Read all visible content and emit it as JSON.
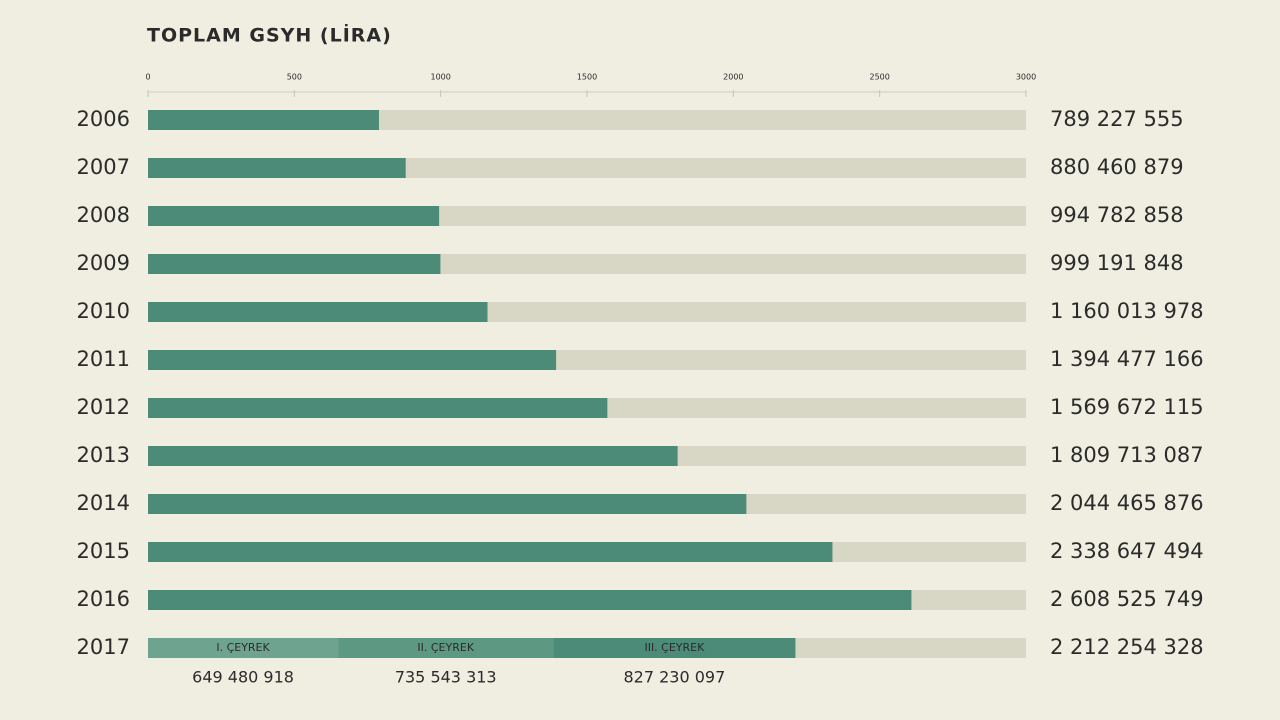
{
  "chart_data": {
    "type": "hbar",
    "title": "TOPLAM GSYH (LİRA)",
    "categories": [
      "2006",
      "2007",
      "2008",
      "2009",
      "2010",
      "2011",
      "2012",
      "2013",
      "2014",
      "2015",
      "2016",
      "2017"
    ],
    "xlim": [
      0,
      3000
    ],
    "xticks": [
      0,
      500,
      1000,
      1500,
      2000,
      2500,
      3000
    ],
    "track_color": "#d8d7c6",
    "series": [
      {
        "color": "#4b8b77",
        "values": [
          789.227555,
          880.460879,
          994.782858,
          999.191848,
          1160.013978,
          1394.477166,
          1569.672115,
          1809.713087,
          2044.465876,
          2338.647494,
          2608.525749,
          null
        ],
        "value_labels": [
          "789 227 555",
          "880 460 879",
          "994 782 858",
          "999 191 848",
          "1 160 013 978",
          "1 394 477 166",
          "1 569 672 115",
          "1 809 713 087",
          "2 044 465 876",
          "2 338 647 494",
          "2 608 525 749",
          null
        ]
      },
      {
        "name": "I. ÇEYREK",
        "color": "#6ea38f",
        "values": [
          null,
          null,
          null,
          null,
          null,
          null,
          null,
          null,
          null,
          null,
          null,
          649.480918
        ],
        "value_labels": [
          null,
          null,
          null,
          null,
          null,
          null,
          null,
          null,
          null,
          null,
          null,
          "649 480 918"
        ]
      },
      {
        "name": "II. ÇEYREK",
        "color": "#5d9883",
        "values": [
          null,
          null,
          null,
          null,
          null,
          null,
          null,
          null,
          null,
          null,
          null,
          735.543313
        ],
        "value_labels": [
          null,
          null,
          null,
          null,
          null,
          null,
          null,
          null,
          null,
          null,
          null,
          "735 543 313"
        ]
      },
      {
        "name": "III. ÇEYREK",
        "color": "#4b8b77",
        "values": [
          null,
          null,
          null,
          null,
          null,
          null,
          null,
          null,
          null,
          null,
          null,
          827.230097
        ],
        "value_labels": [
          null,
          null,
          null,
          null,
          null,
          null,
          null,
          null,
          null,
          null,
          null,
          "827 230 097"
        ]
      }
    ],
    "total_2017": {
      "value": 2212.254328,
      "label": "2 212 254 328"
    }
  }
}
